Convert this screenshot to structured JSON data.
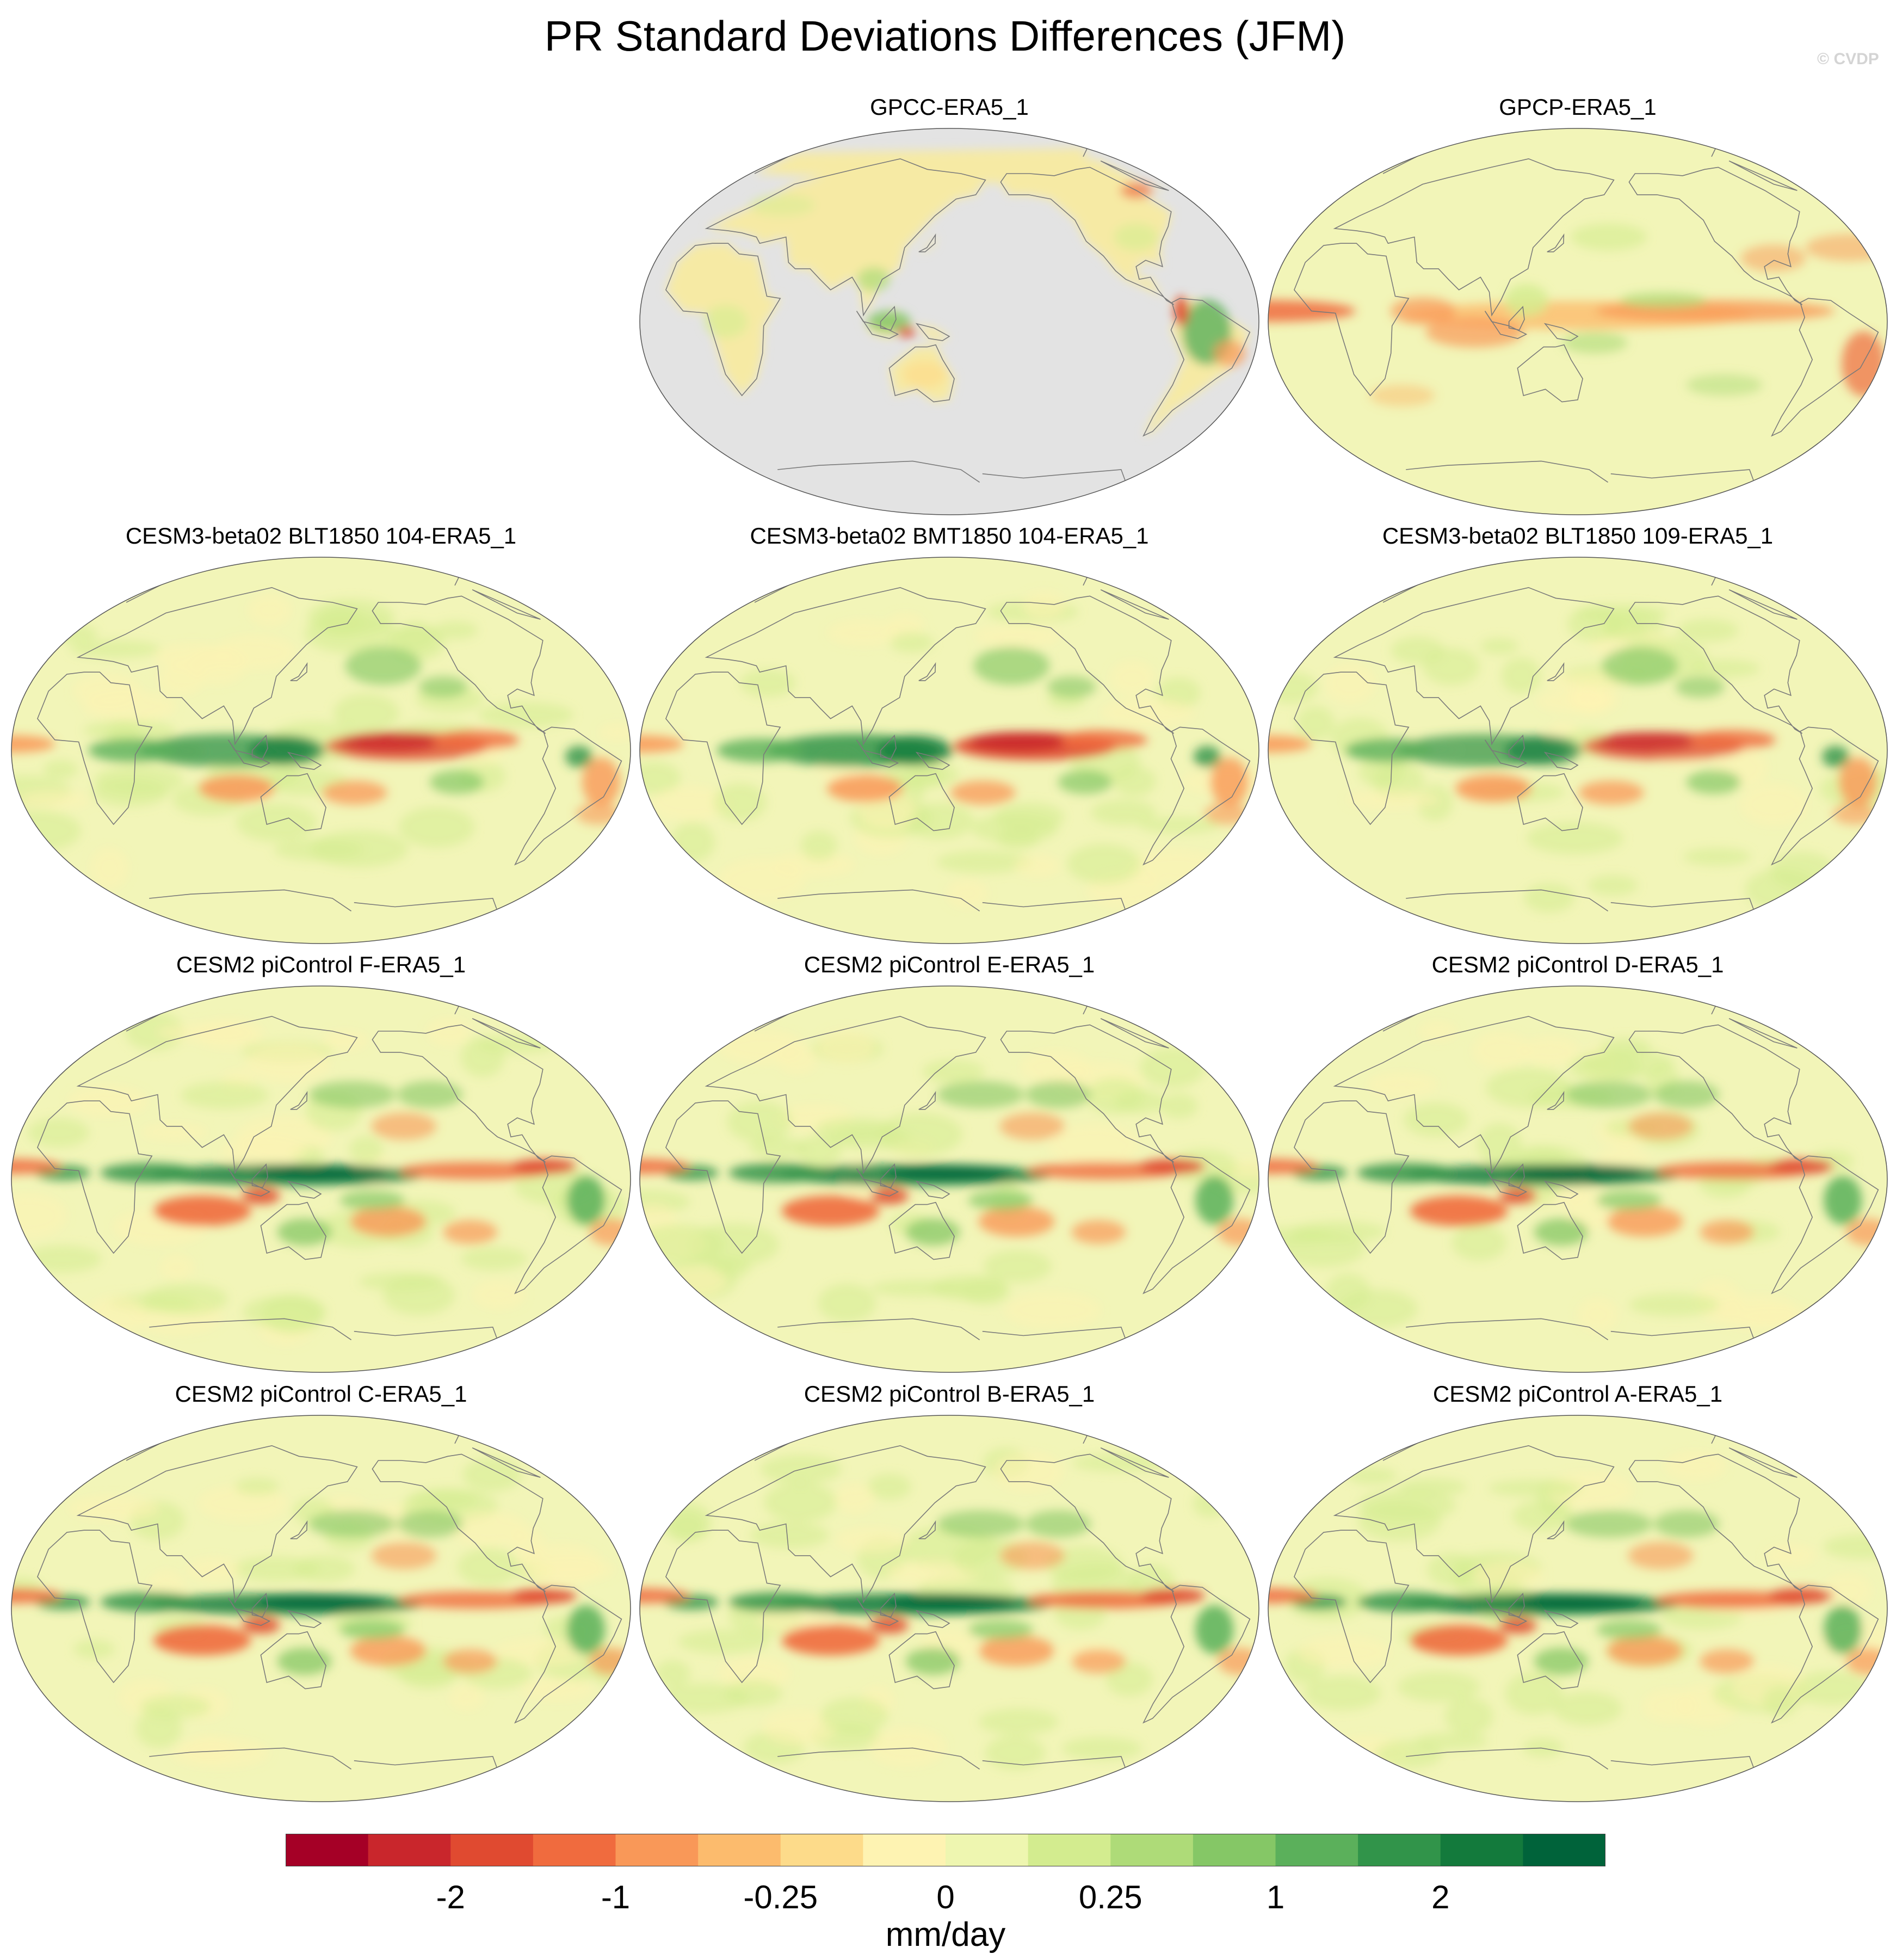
{
  "figure": {
    "title": "PR Standard Deviations Differences (JFM)",
    "watermark": "© CVDP"
  },
  "panels": [
    {
      "title": "GPCC-ERA5_1",
      "style": "land-only",
      "intensity": 0.3
    },
    {
      "title": "GPCP-ERA5_1",
      "style": "obs",
      "intensity": 0.45
    },
    {
      "title": "CESM3-beta02 BLT1850 104-ERA5_1",
      "style": "cesm3",
      "intensity": 0.85
    },
    {
      "title": "CESM3-beta02 BMT1850 104-ERA5_1",
      "style": "cesm3",
      "intensity": 0.95
    },
    {
      "title": "CESM3-beta02 BLT1850 109-ERA5_1",
      "style": "cesm3",
      "intensity": 0.8
    },
    {
      "title": "CESM2 piControl F-ERA5_1",
      "style": "cesm2",
      "intensity": 0.9
    },
    {
      "title": "CESM2 piControl E-ERA5_1",
      "style": "cesm2",
      "intensity": 0.9
    },
    {
      "title": "CESM2 piControl D-ERA5_1",
      "style": "cesm2",
      "intensity": 0.92
    },
    {
      "title": "CESM2 piControl C-ERA5_1",
      "style": "cesm2",
      "intensity": 0.9
    },
    {
      "title": "CESM2 piControl B-ERA5_1",
      "style": "cesm2",
      "intensity": 0.95
    },
    {
      "title": "CESM2 piControl A-ERA5_1",
      "style": "cesm2",
      "intensity": 0.95
    }
  ],
  "colorbar": {
    "units": "mm/day",
    "colors": [
      "#a50026",
      "#c9262c",
      "#e04a30",
      "#f06b3e",
      "#f99858",
      "#fcbb6d",
      "#fddb8a",
      "#fef3b2",
      "#eef6b0",
      "#d3ec8f",
      "#aedb78",
      "#85c766",
      "#5bb05b",
      "#31944a",
      "#137a3c",
      "#00633a"
    ],
    "tick_labels": [
      "-2",
      "-1",
      "-0.25",
      "0",
      "0.25",
      "1",
      "2"
    ],
    "tick_boundaries": [
      2,
      4,
      6,
      8,
      10,
      12,
      14
    ]
  }
}
